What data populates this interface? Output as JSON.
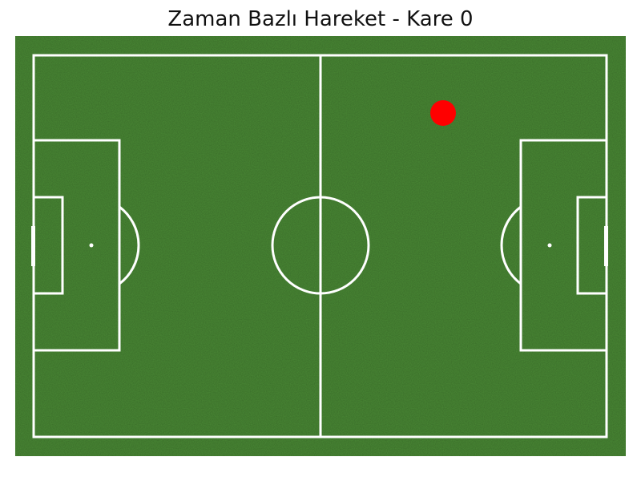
{
  "title": "Zaman Bazlı Hareket - Kare 0",
  "colors": {
    "grass": "#4a8a35",
    "grass_dark": "#3f7a2d",
    "line": "#ffffff",
    "ball": "#ff0000"
  },
  "ball": {
    "icon": "ball-icon"
  }
}
